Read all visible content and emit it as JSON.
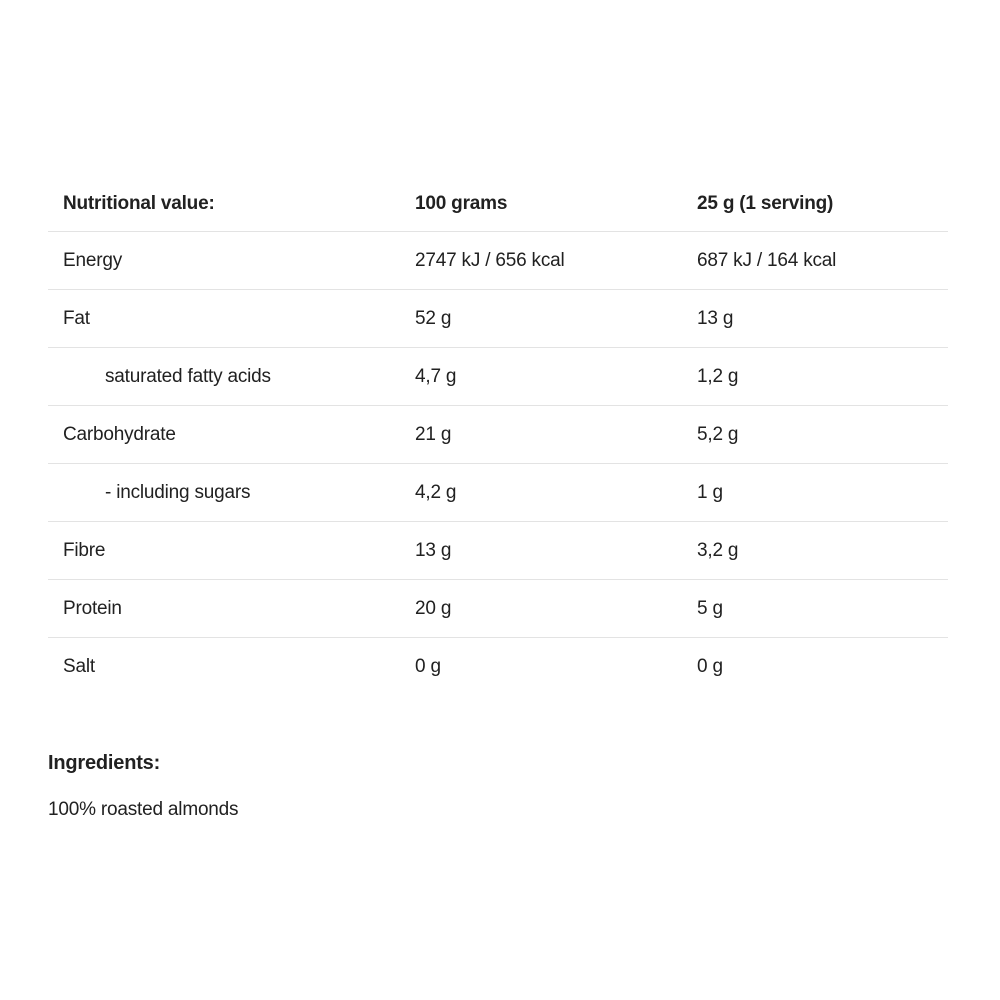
{
  "page": {
    "background_color": "#ffffff",
    "text_color": "#212121",
    "divider_color": "#e3e3e3"
  },
  "nutrition_table": {
    "headers": {
      "label": "Nutritional value:",
      "per_100g": "100 grams",
      "per_serving": "25 g (1 serving)"
    },
    "rows": [
      {
        "label": "Energy",
        "per_100g": "2747 kJ / 656 kcal",
        "per_serving": "687 kJ / 164 kcal"
      },
      {
        "label": "Fat",
        "per_100g": "52 g",
        "per_serving": "13 g"
      },
      {
        "label": "saturated fatty acids",
        "per_100g": "4,7 g",
        "per_serving": "1,2 g"
      },
      {
        "label": "Carbohydrate",
        "per_100g": "21 g",
        "per_serving": "5,2 g"
      },
      {
        "label": "- including sugars",
        "per_100g": "4,2 g",
        "per_serving": "1 g"
      },
      {
        "label": "Fibre",
        "per_100g": "13 g",
        "per_serving": "3,2 g"
      },
      {
        "label": "Protein",
        "per_100g": "20 g",
        "per_serving": "5 g"
      },
      {
        "label": "Salt",
        "per_100g": "0 g",
        "per_serving": "0 g"
      }
    ]
  },
  "ingredients": {
    "heading": "Ingredients:",
    "text": "100% roasted almonds"
  }
}
